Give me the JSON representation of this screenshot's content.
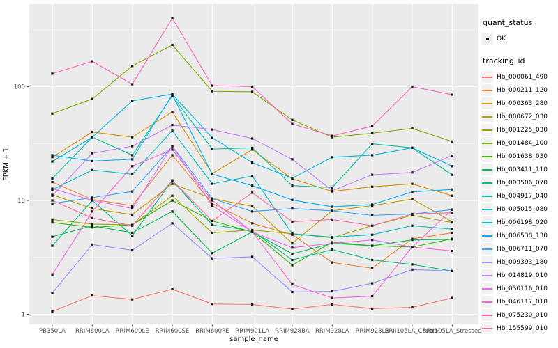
{
  "legend": {
    "quant_status_title": "quant_status",
    "ok_label": "OK",
    "tracking_title": "tracking_id"
  },
  "chart_data": {
    "type": "line",
    "title": "",
    "xlabel": "sample_name",
    "ylabel": "FPKM + 1",
    "y_scale": "log10",
    "y_ticks": [
      1,
      10,
      100
    ],
    "y_minor_ticks": [
      3.1623,
      31.623,
      316.23
    ],
    "ylim": [
      0.8,
      480
    ],
    "grid": "on",
    "legend_position": "right",
    "panel_bg": "#EBEBEB",
    "grid_color": "#FFFFFF",
    "point_color": "#111111",
    "point_shape": "square",
    "categories": [
      "PB350LA",
      "RRIM600LA",
      "RRIM600LE",
      "RRIM600SE",
      "RRIM600PE",
      "RRIM901LA",
      "RRIM928BA",
      "RRIM928LA",
      "RRIM928LE",
      "RRII105LA_Control",
      "RRII105LA_Stressed"
    ],
    "series": [
      {
        "name": "Hb_000061_490",
        "color": "#F8766D",
        "values": [
          1.06,
          1.46,
          1.35,
          1.66,
          1.23,
          1.22,
          1.11,
          1.22,
          1.12,
          1.15,
          1.39
        ]
      },
      {
        "name": "Hb_000211_120",
        "color": "#EA8331",
        "values": [
          14.5,
          10.2,
          9.0,
          25,
          9.4,
          6.3,
          5.0,
          2.85,
          2.54,
          4.6,
          5.2
        ]
      },
      {
        "name": "Hb_000363_280",
        "color": "#D89000",
        "values": [
          24,
          40,
          36,
          60,
          17.2,
          28,
          15.5,
          12.0,
          13.2,
          14,
          11
        ]
      },
      {
        "name": "Hb_000672_030",
        "color": "#C09B00",
        "values": [
          11.2,
          8.5,
          7.5,
          14,
          10.4,
          8.9,
          4.2,
          8.1,
          9.0,
          10.3,
          6.5
        ]
      },
      {
        "name": "Hb_001225_030",
        "color": "#A3A500",
        "values": [
          6.8,
          6.2,
          6.1,
          11,
          5.2,
          5.5,
          5.1,
          4.7,
          6.0,
          7.4,
          6.4
        ]
      },
      {
        "name": "Hb_001484_100",
        "color": "#7CAE00",
        "values": [
          58,
          78,
          152,
          233,
          91,
          90,
          51,
          36,
          39,
          43,
          33
        ]
      },
      {
        "name": "Hb_001638_030",
        "color": "#39B600",
        "values": [
          6.4,
          5.8,
          6.1,
          10,
          6.6,
          5.3,
          2.7,
          4.3,
          4.0,
          3.9,
          4.6
        ]
      },
      {
        "name": "Hb_003411_110",
        "color": "#00BB4E",
        "values": [
          4.8,
          6.0,
          5.2,
          8.0,
          3.44,
          5.3,
          3.4,
          4.2,
          4.0,
          4.5,
          4.55
        ]
      },
      {
        "name": "Hb_003506_070",
        "color": "#00BF7D",
        "values": [
          4.0,
          10.0,
          4.9,
          15,
          6.1,
          5.4,
          3.0,
          3.7,
          3.0,
          2.74,
          2.4
        ]
      },
      {
        "name": "Hb_004917_040",
        "color": "#00C1A3",
        "values": [
          15.6,
          36,
          25,
          83,
          28.3,
          29,
          13.5,
          13.0,
          31.5,
          29,
          16.8
        ]
      },
      {
        "name": "Hb_005015_080",
        "color": "#00BFC4",
        "values": [
          12.4,
          18.5,
          17,
          41,
          14.0,
          16.4,
          5.1,
          4.76,
          5.0,
          6.0,
          5.6
        ]
      },
      {
        "name": "Hb_006198_020",
        "color": "#00BAE0",
        "values": [
          22,
          36,
          75,
          86,
          35.5,
          21.5,
          15.7,
          24,
          25,
          29,
          20
        ]
      },
      {
        "name": "Hb_006538_130",
        "color": "#00B0F6",
        "values": [
          25,
          22.2,
          23,
          85,
          17.0,
          13.5,
          10.1,
          8.8,
          9.2,
          11.9,
          12.5
        ]
      },
      {
        "name": "Hb_006711_070",
        "color": "#35A2FF",
        "values": [
          9.4,
          10.6,
          12,
          30,
          10.4,
          8.0,
          8.5,
          8.1,
          7.4,
          7.6,
          8.3
        ]
      },
      {
        "name": "Hb_009393_180",
        "color": "#9590FF",
        "values": [
          1.54,
          4.1,
          3.65,
          6.3,
          3.1,
          3.2,
          1.57,
          1.59,
          1.87,
          2.47,
          2.4
        ]
      },
      {
        "name": "Hb_014819_010",
        "color": "#C77CFF",
        "values": [
          11,
          26,
          30,
          46,
          42,
          35,
          23,
          12.2,
          16.8,
          17.6,
          24.8
        ]
      },
      {
        "name": "Hb_030116_010",
        "color": "#E76BF3",
        "values": [
          12.7,
          10,
          8.5,
          30,
          9.0,
          5.3,
          3.85,
          4.2,
          4.5,
          3.9,
          8.3
        ]
      },
      {
        "name": "Hb_046117_010",
        "color": "#FA62DB",
        "values": [
          2.24,
          8.0,
          20,
          28,
          10,
          5.3,
          1.83,
          1.39,
          1.44,
          3.9,
          3.6
        ]
      },
      {
        "name": "Hb_075230_010",
        "color": "#FF62BC",
        "values": [
          130,
          167,
          105,
          400,
          102,
          100,
          47,
          37,
          45,
          100,
          85
        ]
      },
      {
        "name": "Hb_155599_010",
        "color": "#FF6A98",
        "values": [
          10,
          7.0,
          6.0,
          15,
          6.6,
          11.7,
          6.5,
          6.8,
          6.0,
          7.6,
          7.8
        ]
      }
    ]
  }
}
